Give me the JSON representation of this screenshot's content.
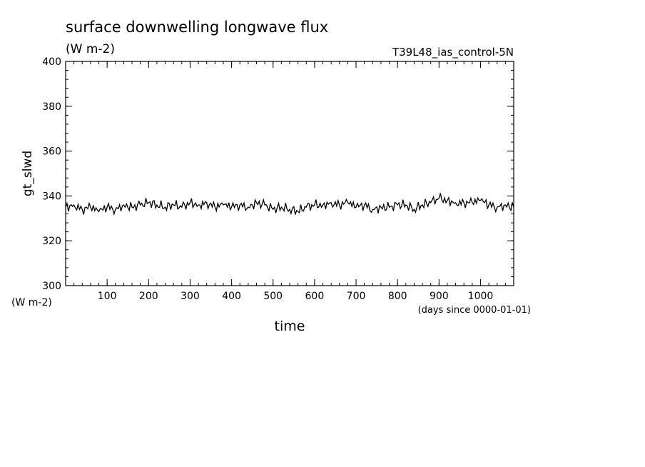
{
  "chart_data": {
    "type": "line",
    "title": "surface downwelling longwave flux",
    "subtitle": "(W m-2)",
    "run_label": "T39L48_ias_control-5N",
    "xlabel": "time",
    "x_units": "(days since 0000-01-01)",
    "ylabel": "gt_slwd",
    "y_units": "(W m-2)",
    "xlim": [
      0,
      1080
    ],
    "ylim": [
      300,
      400
    ],
    "x_ticks": [
      100,
      200,
      300,
      400,
      500,
      600,
      700,
      800,
      900,
      1000
    ],
    "y_ticks": [
      300,
      320,
      340,
      360,
      380,
      400
    ],
    "grid": false,
    "series": [
      {
        "color": "#000000",
        "x": [
          0,
          20,
          40,
          60,
          80,
          100,
          120,
          140,
          160,
          180,
          200,
          220,
          240,
          260,
          280,
          300,
          320,
          340,
          360,
          380,
          400,
          420,
          440,
          460,
          480,
          500,
          520,
          540,
          560,
          580,
          600,
          620,
          640,
          660,
          680,
          700,
          720,
          740,
          760,
          780,
          800,
          820,
          840,
          860,
          880,
          900,
          920,
          940,
          960,
          980,
          1000,
          1020,
          1040,
          1060,
          1080
        ],
        "y": [
          335,
          336,
          334,
          335,
          333,
          335,
          334,
          336,
          335,
          336,
          337,
          336,
          335,
          336,
          335,
          337,
          336,
          337,
          335,
          336,
          335,
          336,
          335,
          337,
          336,
          334,
          335,
          334,
          333,
          335,
          336,
          336,
          337,
          336,
          337,
          335,
          336,
          334,
          335,
          335,
          336,
          336,
          334,
          336,
          337,
          339,
          338,
          337,
          337,
          337,
          338,
          336,
          335,
          336,
          335
        ]
      }
    ]
  }
}
